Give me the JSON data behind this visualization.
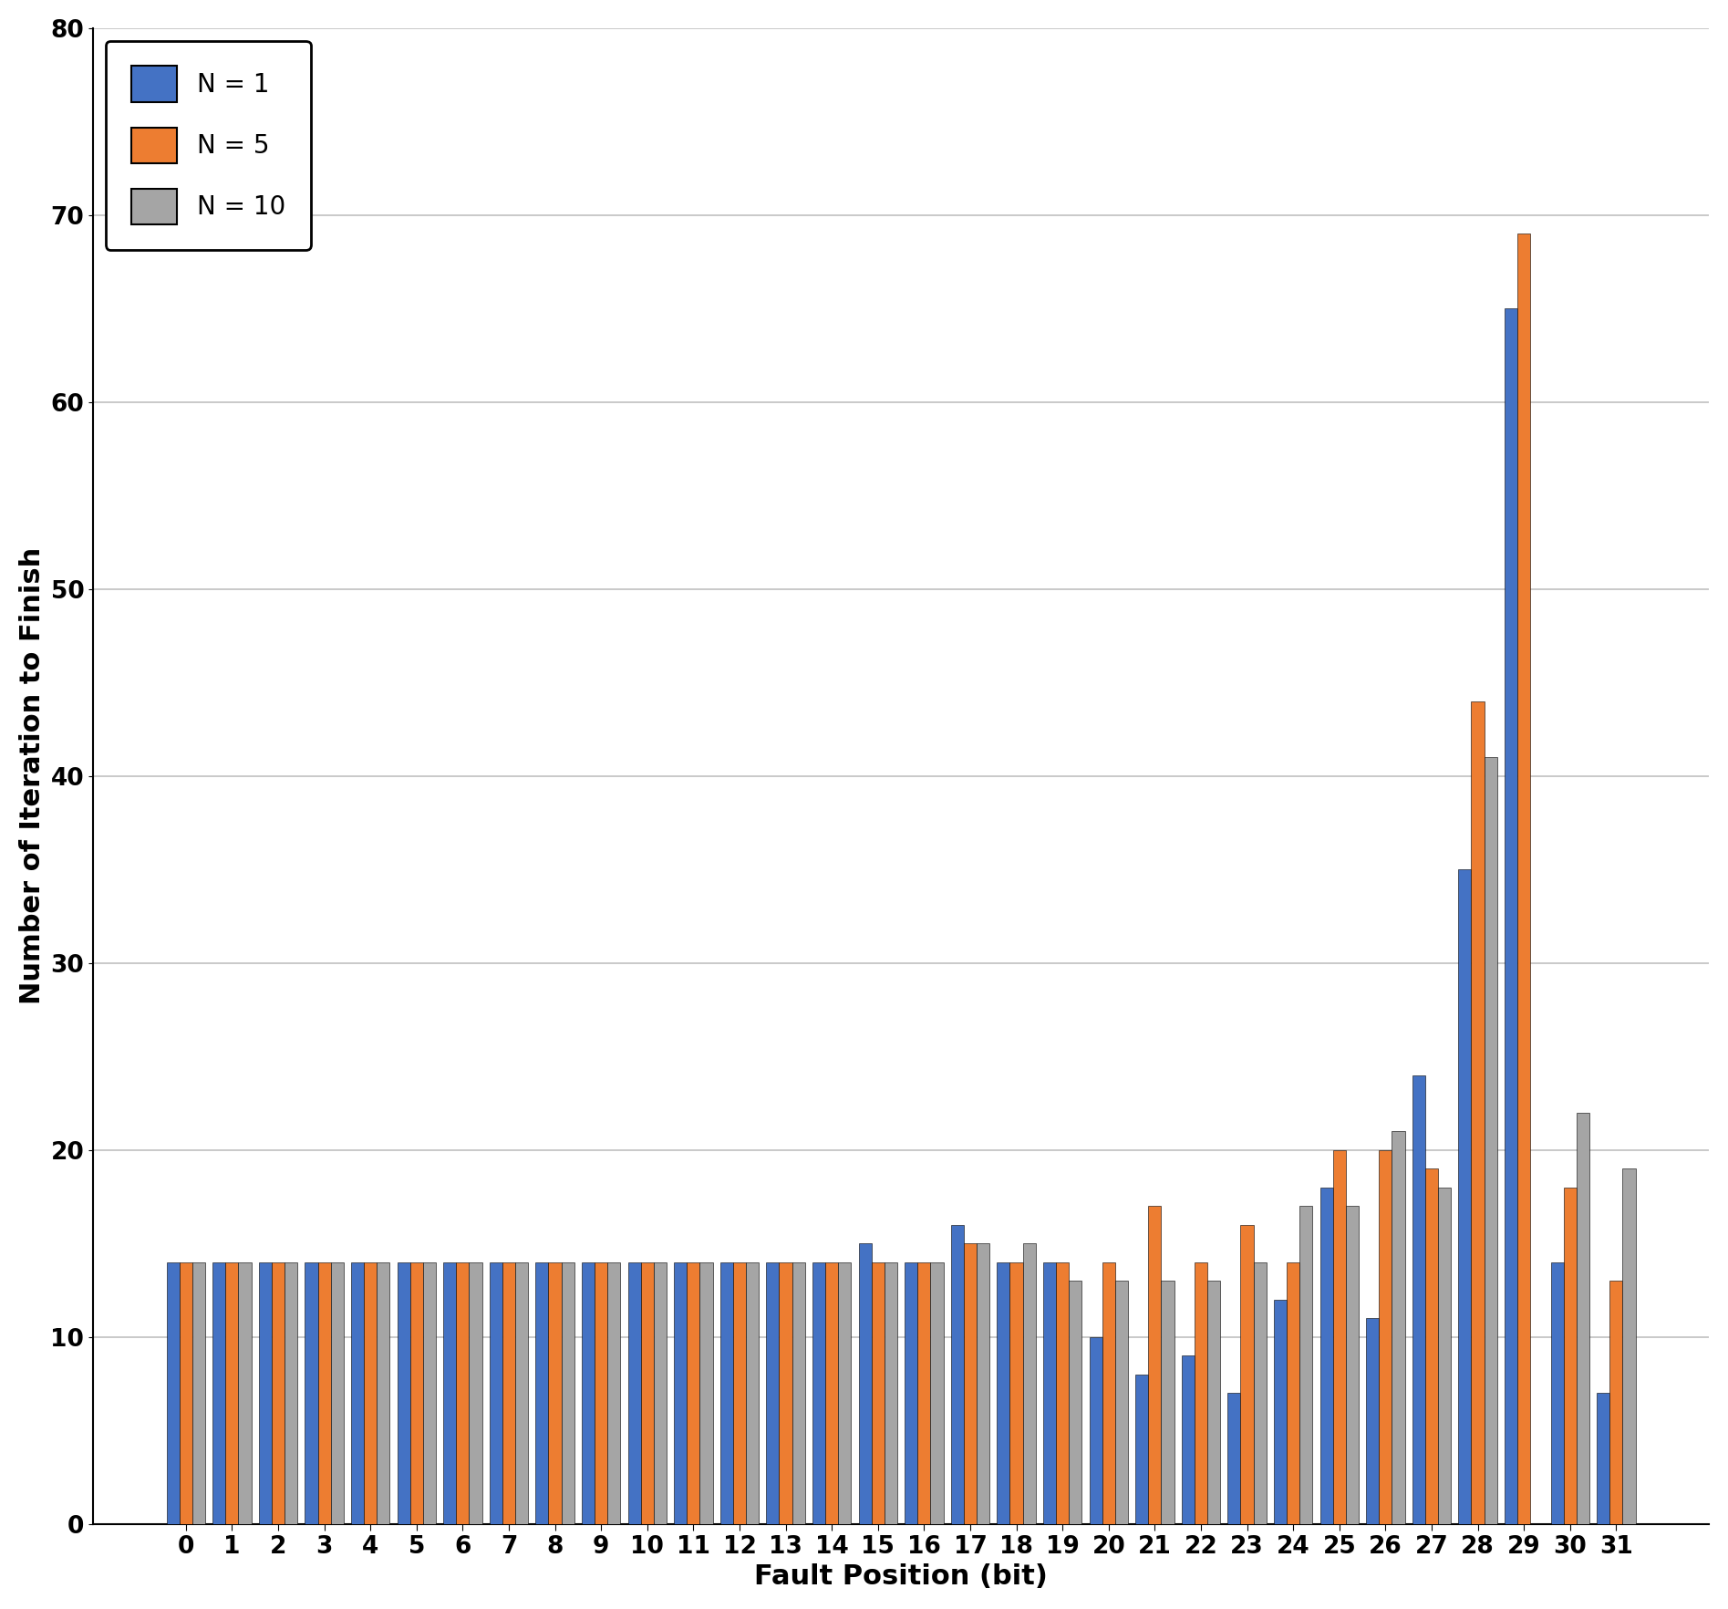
{
  "title": "",
  "xlabel": "Fault Position (bit)",
  "ylabel": "Number of Iteration to Finish",
  "ylim": [
    0,
    80
  ],
  "yticks": [
    0,
    10,
    20,
    30,
    40,
    50,
    60,
    70,
    80
  ],
  "categories": [
    0,
    1,
    2,
    3,
    4,
    5,
    6,
    7,
    8,
    9,
    10,
    11,
    12,
    13,
    14,
    15,
    16,
    17,
    18,
    19,
    20,
    21,
    22,
    23,
    24,
    25,
    26,
    27,
    28,
    29,
    30,
    31
  ],
  "series": {
    "N = 1": [
      14,
      14,
      14,
      14,
      14,
      14,
      14,
      14,
      14,
      14,
      14,
      14,
      14,
      14,
      14,
      15,
      14,
      16,
      14,
      14,
      10,
      8,
      9,
      7,
      12,
      18,
      11,
      24,
      35,
      65,
      14,
      7
    ],
    "N = 5": [
      14,
      14,
      14,
      14,
      14,
      14,
      14,
      14,
      14,
      14,
      14,
      14,
      14,
      14,
      14,
      14,
      14,
      15,
      14,
      14,
      14,
      17,
      14,
      16,
      14,
      20,
      20,
      19,
      44,
      69,
      18,
      13
    ],
    "N = 10": [
      14,
      14,
      14,
      14,
      14,
      14,
      14,
      14,
      14,
      14,
      14,
      14,
      14,
      14,
      14,
      14,
      14,
      15,
      15,
      13,
      13,
      13,
      13,
      14,
      17,
      17,
      21,
      18,
      41,
      0,
      22,
      19
    ]
  },
  "colors": {
    "N = 1": "#4472C4",
    "N = 5": "#ED7D31",
    "N = 10": "#A5A5A5"
  },
  "bar_width": 0.28,
  "legend_loc": "upper left",
  "background_color": "#FFFFFF",
  "grid_color": "#C0C0C0",
  "xlabel_fontsize": 22,
  "ylabel_fontsize": 22,
  "tick_fontsize": 19,
  "legend_fontsize": 20,
  "legend_title_fontsize": 20
}
